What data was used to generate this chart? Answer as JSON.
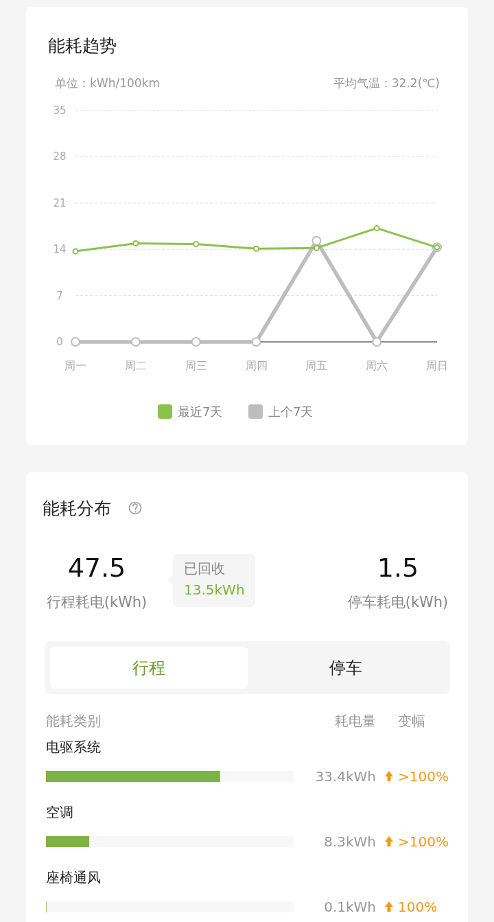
{
  "chart_data": [
    {
      "type": "line",
      "title": "能耗趋势",
      "subtitle": "单位：kWh/100km",
      "annotations": [
        "平均气温：32.2(℃)"
      ],
      "categories": [
        "周一",
        "周二",
        "周三",
        "周四",
        "周五",
        "周六",
        "周日"
      ],
      "series": [
        {
          "name": "最近7天",
          "color": "#8bc34a",
          "values": [
            13.7,
            14.9,
            14.8,
            14.1,
            14.2,
            17.2,
            14.3
          ]
        },
        {
          "name": "上个7天",
          "color": "#bdbdbd",
          "values": [
            0,
            0,
            0,
            0,
            15.3,
            0,
            14.3
          ]
        }
      ],
      "ylim": [
        0,
        35
      ],
      "yticks": [
        0,
        7,
        14,
        21,
        28,
        35
      ],
      "grid": "y",
      "legend": "bottom",
      "marker": "circle"
    },
    {
      "type": "other",
      "title": "能耗分布",
      "annotations": [
        "47.5",
        "行程耗电(kWh)",
        "已回收",
        "13.5kWh",
        "1.5",
        "停车耗电(kWh)",
        "行程",
        "停车"
      ]
    },
    {
      "type": "bar",
      "orientation": "horizontal",
      "categories": [
        "电驱系统",
        "空调",
        "座椅通风"
      ],
      "values": [
        33.4,
        8.3,
        0.1
      ],
      "color": "#7cb342",
      "xlim": [
        0,
        47.5
      ],
      "value_labels": [
        "33.4kWh",
        "8.3kWh",
        "0.1kWh"
      ],
      "annotations": [
        "能耗类别",
        "耗电量",
        "变幅",
        ">100%",
        ">100%",
        "100%"
      ]
    }
  ]
}
